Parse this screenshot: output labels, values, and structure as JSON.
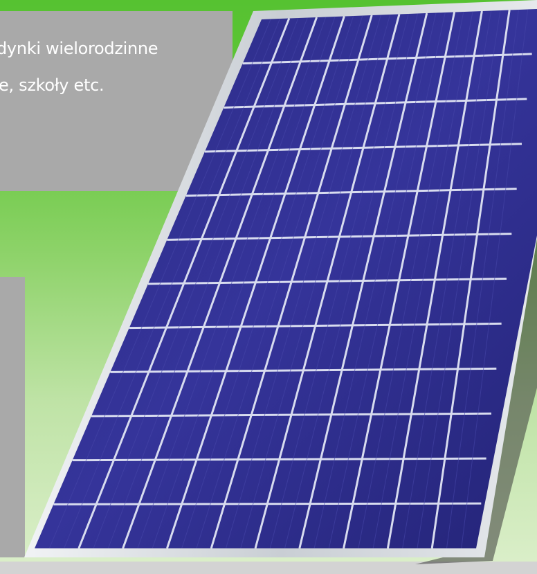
{
  "caption": {
    "line1": "dynki wielorodzinne",
    "line2": "e, szkoły etc."
  },
  "colors": {
    "background_green": "#62c63a",
    "gray_panel": "#a9a9a9",
    "frame": "#d9dde2",
    "cell_blue": "#2e2e8a",
    "text": "#ffffff"
  },
  "solar_panel": {
    "rows": 12,
    "columns": 10
  }
}
